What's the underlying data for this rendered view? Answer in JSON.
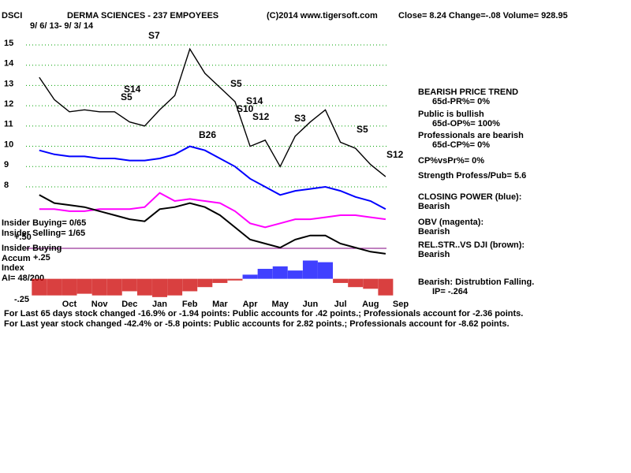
{
  "chart_data": [
    {
      "type": "line",
      "title": "DERMA SCIENCES - 237 EMPOYEES",
      "subtitle": "9/ 6/ 13-  9/ 3/ 14",
      "annotations": [
        "DSCI",
        "(C)2014 www.tigersoft.com",
        "Close=  8.24  Change=-.08 Volume= 928.95",
        "BEARISH PRICE TREND",
        "65d-PR%= 0%",
        "Public is bullish",
        "65d-OP%= 100%",
        "Professionals are bearish",
        "65d-CP%= 0%",
        "CP%vsPr%=  0%",
        "Strength Profess/Pub= 5.6",
        "Bearish",
        "Bearish",
        "Bearish",
        "Bearish: Distrubtion Falling.",
        "IP= -.264",
        "Insider Buying= 0/65",
        "Insider Selling= 1/65",
        "Insider Buying",
        "Accum",
        "Index",
        "AI= 48/200",
        "For Last 65 days stock changed -16.9% or -1.94 points:  Public accounts for  .42 points.;  Professionals account for -2.36 points.",
        "For Last year stock changed -42.4% or -5.8 points:  Public accounts for  2.82 points.;  Professionals account for -8.62 points."
      ],
      "signals": [
        "S14",
        "S5",
        "S7",
        "B26",
        "S5",
        "S10",
        "S14",
        "S12",
        "S3",
        "S5",
        "S12"
      ],
      "categories": [
        null,
        null,
        "Oct",
        null,
        "Nov",
        null,
        "Dec",
        null,
        "Jan",
        null,
        "Feb",
        null,
        "Mar",
        null,
        "Apr",
        null,
        "May",
        null,
        "Jun",
        null,
        "Jul",
        null,
        "Aug",
        null,
        "Sep"
      ],
      "series": [
        {
          "color": "#000000",
          "values": [
            13.4,
            12.3,
            11.7,
            11.8,
            11.7,
            11.7,
            11.2,
            11.0,
            11.8,
            12.5,
            14.8,
            13.6,
            12.9,
            12.2,
            10.0,
            10.3,
            9.0,
            10.5,
            11.2,
            11.8,
            10.2,
            9.9,
            9.1,
            8.5,
            null
          ]
        },
        {
          "name": "CLOSING POWER (blue):",
          "color": "#0000ff",
          "values": [
            9.8,
            9.6,
            9.5,
            9.5,
            9.4,
            9.4,
            9.3,
            9.3,
            9.4,
            9.6,
            10.0,
            9.8,
            9.4,
            9.0,
            8.4,
            8.0,
            7.6,
            7.8,
            7.9,
            8.0,
            7.8,
            7.5,
            7.3,
            6.9,
            null
          ]
        },
        {
          "name": "OBV (magenta):",
          "color": "#ff00ff",
          "values": [
            6.9,
            6.9,
            6.8,
            6.8,
            6.9,
            6.9,
            6.9,
            7.0,
            7.7,
            7.3,
            7.4,
            7.3,
            7.2,
            6.8,
            6.2,
            6.0,
            6.2,
            6.4,
            6.4,
            6.5,
            6.6,
            6.6,
            6.5,
            6.4,
            null
          ]
        },
        {
          "name": "REL.STR..VS DJI (brown):",
          "color": "#000000",
          "values": [
            7.6,
            7.2,
            7.1,
            7.0,
            6.8,
            6.6,
            6.4,
            6.3,
            6.9,
            7.0,
            7.2,
            7.0,
            6.6,
            6.0,
            5.4,
            5.2,
            5.0,
            5.4,
            5.6,
            5.6,
            5.2,
            5.0,
            4.8,
            4.7,
            null
          ]
        }
      ],
      "ylim": [
        4.5,
        15.8
      ],
      "yticks": [
        8,
        9,
        10,
        11,
        12,
        13,
        14,
        15
      ],
      "grid": true
    },
    {
      "type": "bar",
      "values": [
        -0.2,
        -0.2,
        -0.2,
        -0.18,
        -0.2,
        -0.2,
        -0.15,
        -0.2,
        -0.22,
        -0.2,
        -0.15,
        -0.1,
        -0.05,
        -0.02,
        0.05,
        0.12,
        0.15,
        0.1,
        0.22,
        0.2,
        -0.05,
        -0.1,
        -0.12,
        -0.2
      ],
      "pos_color": "#0000ff",
      "neg_color": "#cc0000",
      "ylim": [
        -0.25,
        0.5
      ],
      "yticks": [
        {
          "value": 0.5,
          "label": "+.50"
        },
        {
          "value": 0.25,
          "label": "+.25"
        },
        {
          "value": -0.25,
          "label": "-.25"
        }
      ]
    }
  ]
}
